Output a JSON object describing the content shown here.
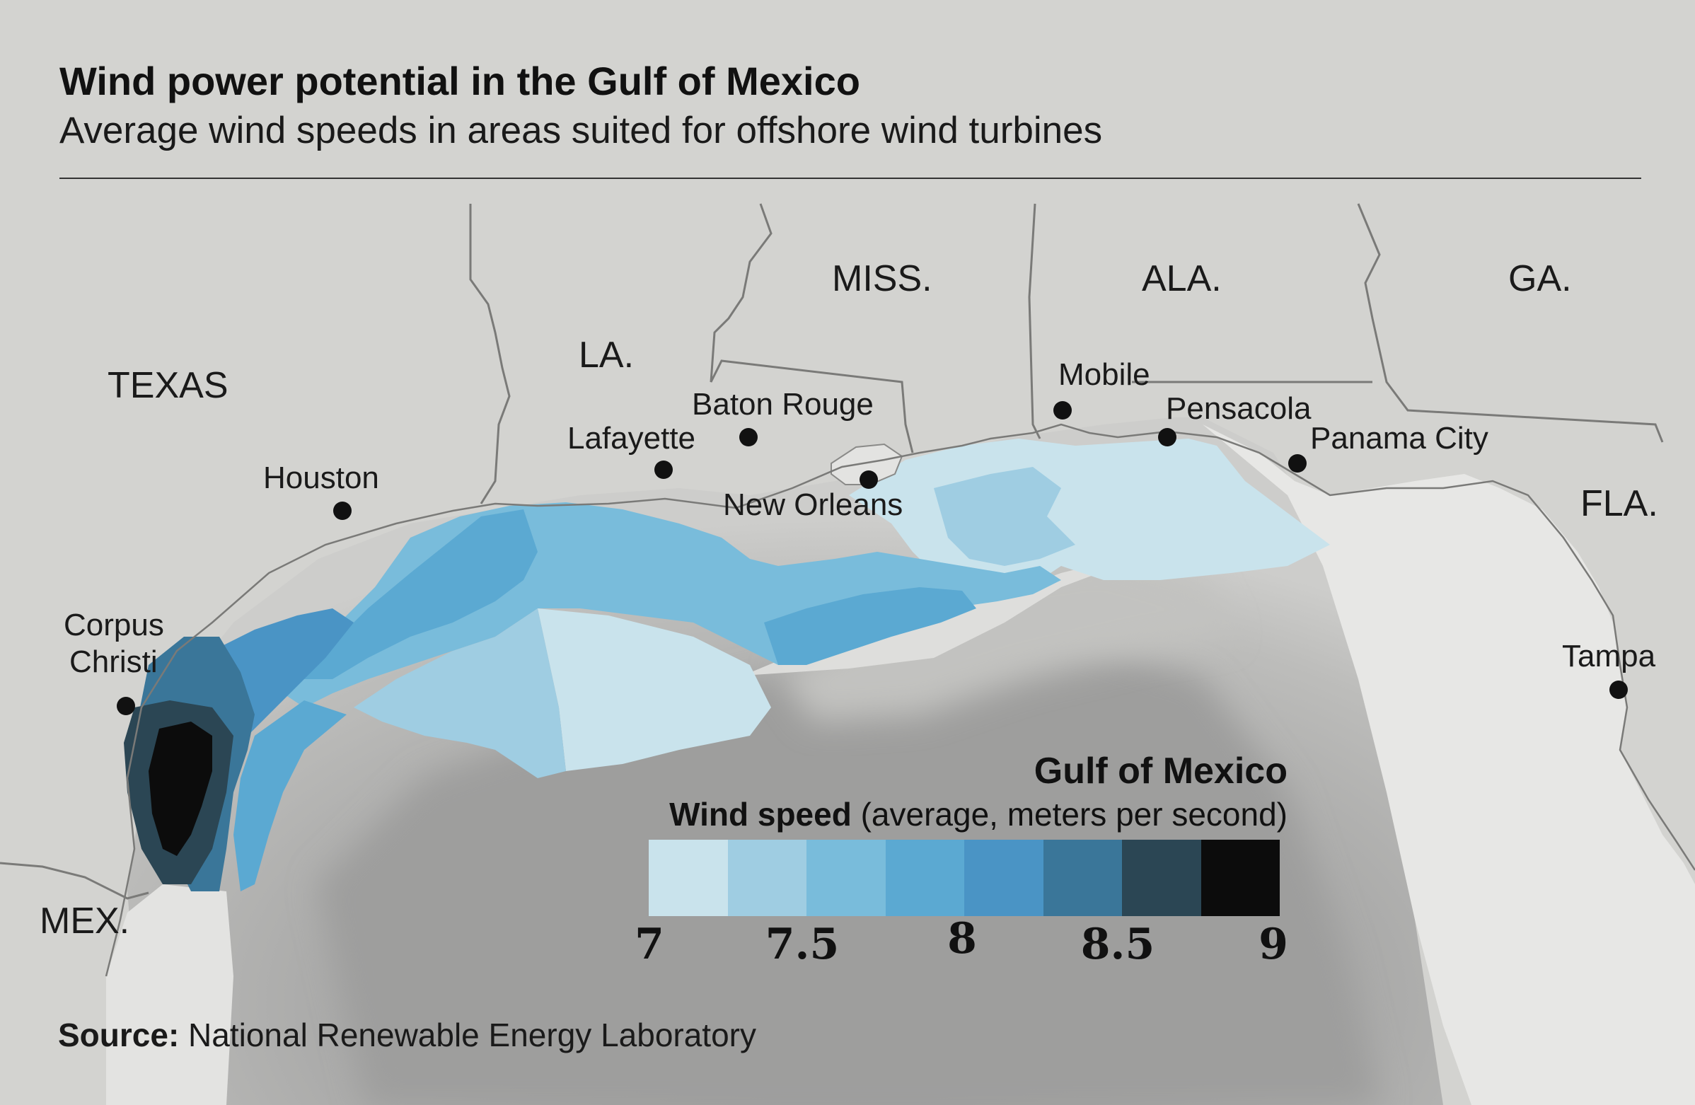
{
  "header": {
    "title": "Wind power potential in the Gulf of Mexico",
    "subtitle": "Average wind speeds in areas suited for offshore wind turbines"
  },
  "states": {
    "texas": "TEXAS",
    "la": "LA.",
    "miss": "MISS.",
    "ala": "ALA.",
    "ga": "GA.",
    "fla": "FLA.",
    "mex": "MEX."
  },
  "cities": {
    "houston": "Houston",
    "corpus_christi": [
      "Corpus",
      "Christi"
    ],
    "lafayette": "Lafayette",
    "baton_rouge": "Baton Rouge",
    "new_orleans": "New Orleans",
    "mobile": "Mobile",
    "pensacola": "Pensacola",
    "panama_city": "Panama City",
    "tampa": "Tampa"
  },
  "legend": {
    "title": "Gulf of Mexico",
    "subtitle_bold": "Wind speed",
    "subtitle_rest": " (average, meters per second)",
    "colors": [
      "#c9e3ec",
      "#9fcde2",
      "#79bcdb",
      "#5ba9d2",
      "#4a94c5",
      "#3a7699",
      "#2b4654",
      "#0c0c0c"
    ],
    "ticks": [
      "7",
      "7.5",
      "8",
      "8.5",
      "9"
    ]
  },
  "colors": {
    "land": "#d2d2cf",
    "florida_land": "#e6e6e4",
    "water_dark": "#9d9d9c",
    "city_dot": "#111111"
  },
  "source": {
    "label": "Source:",
    "text": " National Renewable Energy Laboratory"
  }
}
